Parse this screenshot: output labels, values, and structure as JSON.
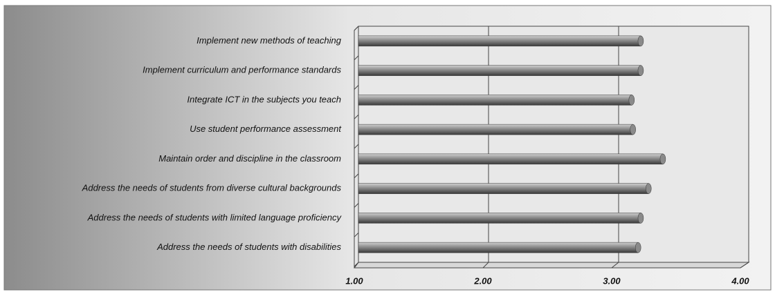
{
  "chart_data": {
    "type": "hbar",
    "categories": [
      "Implement new methods of teaching",
      "Implement curriculum  and performance  standards",
      "Integrate ICT in the subjects you teach",
      "Use student performance  assessment",
      "Maintain order and discipline in the classroom",
      "Address the needs of students from diverse cultural backgrounds",
      "Address the needs of students with limited  language proficiency",
      "Address the needs of students with disabilities"
    ],
    "values": [
      3.17,
      3.17,
      3.1,
      3.11,
      3.34,
      3.23,
      3.17,
      3.15
    ],
    "color": "#8a8a8a",
    "xlim": [
      1,
      4
    ],
    "xticks": [
      {
        "value": 1,
        "label": "1.00"
      },
      {
        "value": 2,
        "label": "2.00"
      },
      {
        "value": 3,
        "label": "3.00"
      },
      {
        "value": 4,
        "label": "4.00"
      }
    ],
    "grid": true
  }
}
